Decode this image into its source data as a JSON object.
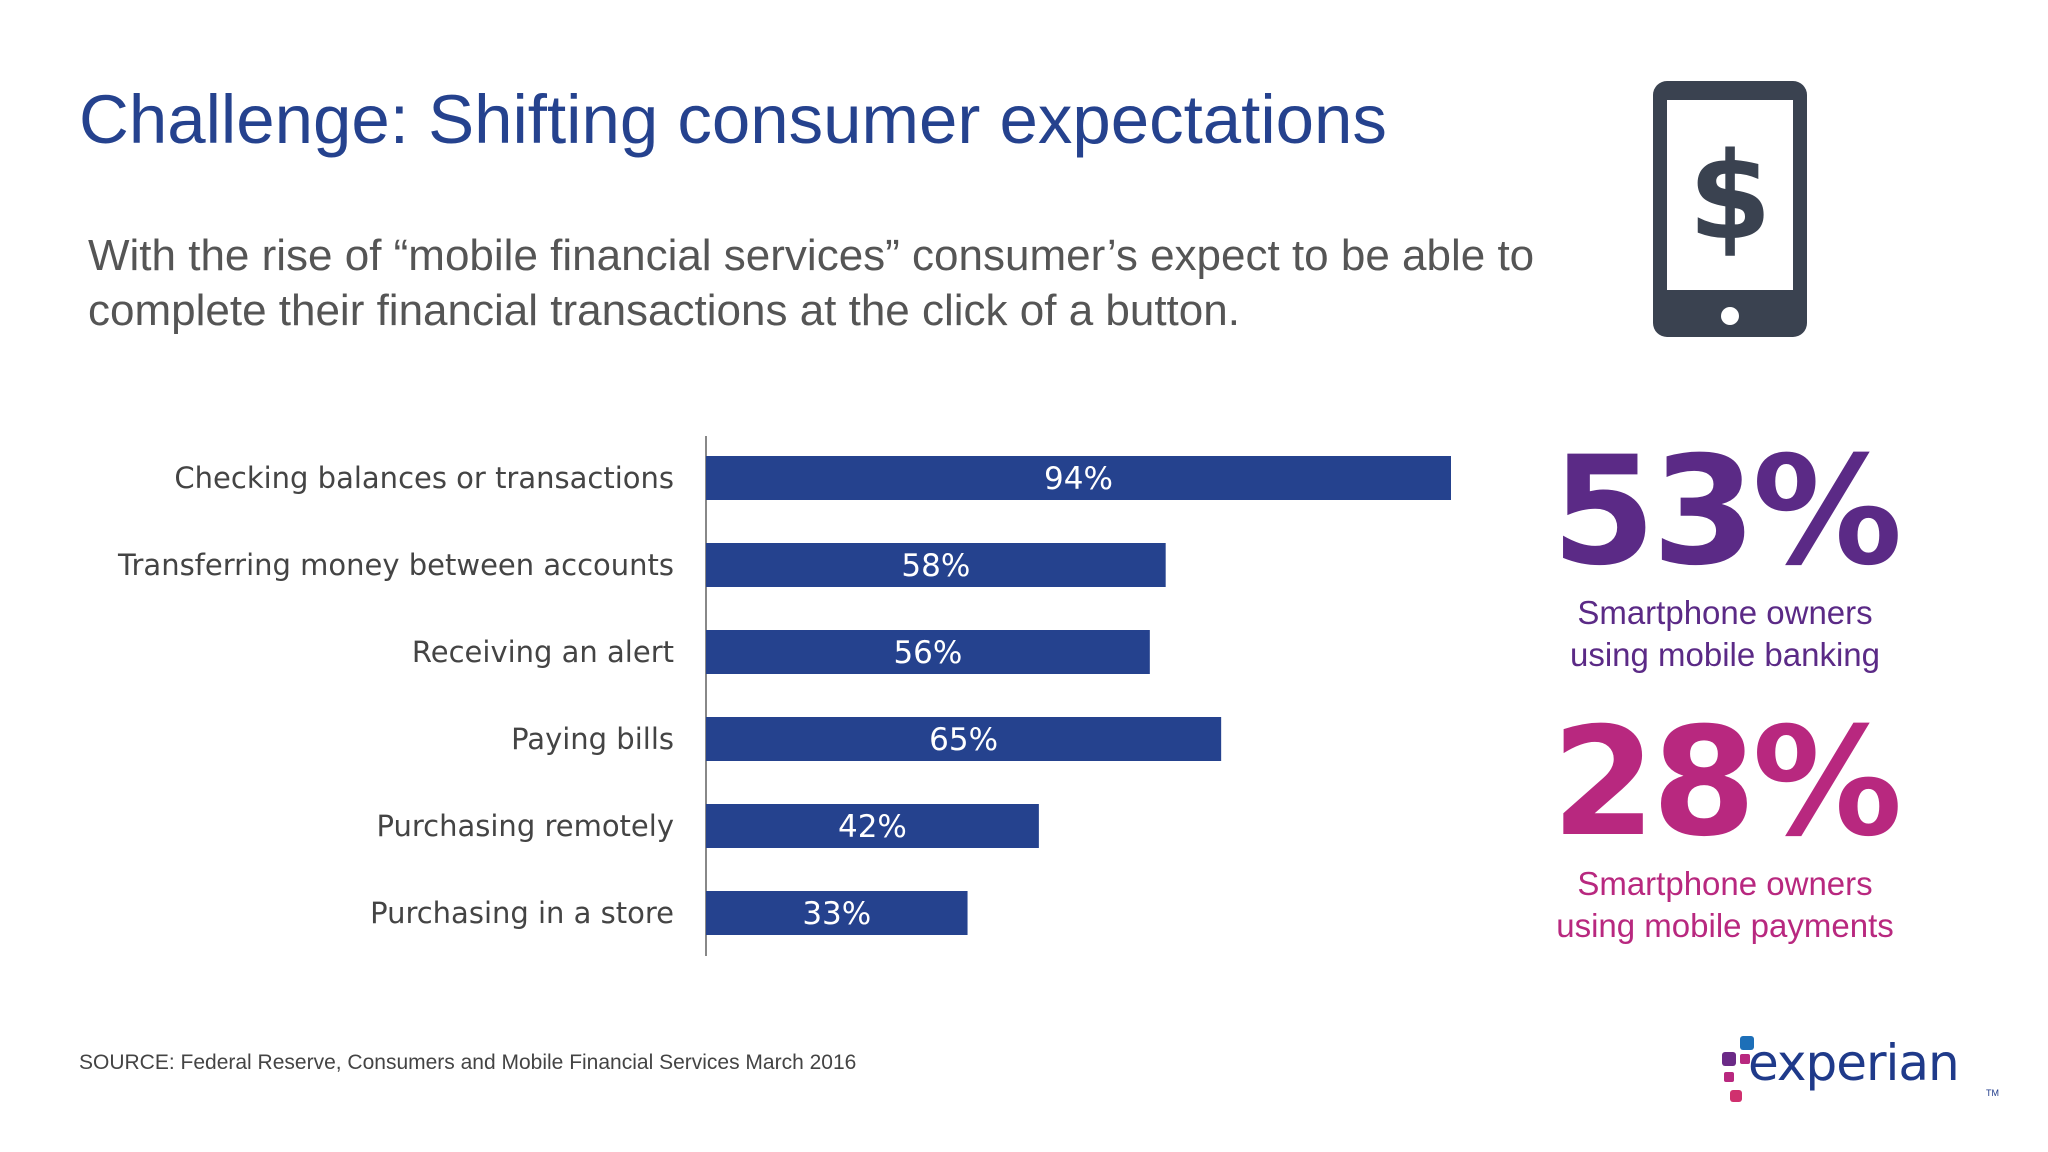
{
  "slide": {
    "title": "Challenge: Shifting consumer expectations",
    "subtitle": "With the rise of “mobile financial services” consumer’s expect to be able to complete their financial transactions at the click of a button.",
    "source": "SOURCE: Federal Reserve, Consumers and Mobile Financial Services March 2016",
    "icon": "smartphone-dollar-icon",
    "logo": {
      "text": "experian",
      "tm": "TM"
    }
  },
  "stats": [
    {
      "value": "53%",
      "line1": "Smartphone owners",
      "line2_prefix": "using ",
      "line2_highlight": "mobile banking",
      "color": "#5b2a86"
    },
    {
      "value": "28%",
      "line1": "Smartphone owners",
      "line2_prefix": "using ",
      "line2_highlight": "mobile payments",
      "color": "#b8287f"
    }
  ],
  "colors": {
    "title": "#25428e",
    "bar": "#25428e",
    "axis": "#888888",
    "icon": "#3a4250"
  },
  "chart_data": {
    "type": "bar",
    "orientation": "horizontal",
    "categories": [
      "Checking balances or transactions",
      "Transferring money between accounts",
      "Receiving an alert",
      "Paying bills",
      "Purchasing remotely",
      "Purchasing in a store"
    ],
    "values": [
      94,
      58,
      56,
      65,
      42,
      33
    ],
    "value_labels": [
      "94%",
      "58%",
      "56%",
      "65%",
      "42%",
      "33%"
    ],
    "xlim": [
      0,
      100
    ],
    "grid": false,
    "legend": "none"
  }
}
